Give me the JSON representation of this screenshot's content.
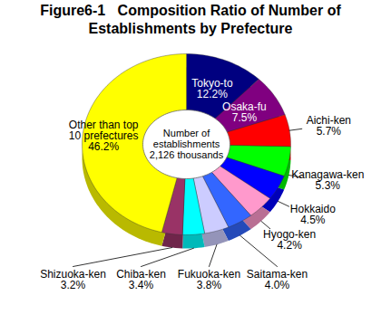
{
  "chart_data": {
    "type": "pie",
    "title": "Figure6-1   Composition Ratio of Number of Establishments by Prefecture",
    "categories": [
      "Tokyo-to",
      "Osaka-fu",
      "Aichi-ken",
      "Kanagawa-ken",
      "Hokkaido",
      "Hyogo-ken",
      "Saitama-ken",
      "Fukuoka-ken",
      "Chiba-ken",
      "Shizuoka-ken",
      "Other than top 10 prefectures"
    ],
    "values": [
      12.2,
      7.5,
      5.7,
      5.3,
      4.5,
      4.2,
      4.0,
      3.8,
      3.4,
      3.2,
      46.2
    ],
    "value_labels": [
      "12.2%",
      "7.5%",
      "5.7%",
      "5.3%",
      "4.5%",
      "4.2%",
      "4.0%",
      "3.8%",
      "3.4%",
      "3.2%",
      "46.2%"
    ],
    "colors": [
      "#000080",
      "#800080",
      "#ff0000",
      "#00ff00",
      "#0000ff",
      "#ff99cc",
      "#3366ff",
      "#ccccff",
      "#00ffff",
      "#993366",
      "#ffff00"
    ],
    "data_labels": true,
    "annotations": [
      "Number of",
      "establishments",
      "2,126 thousands"
    ]
  }
}
